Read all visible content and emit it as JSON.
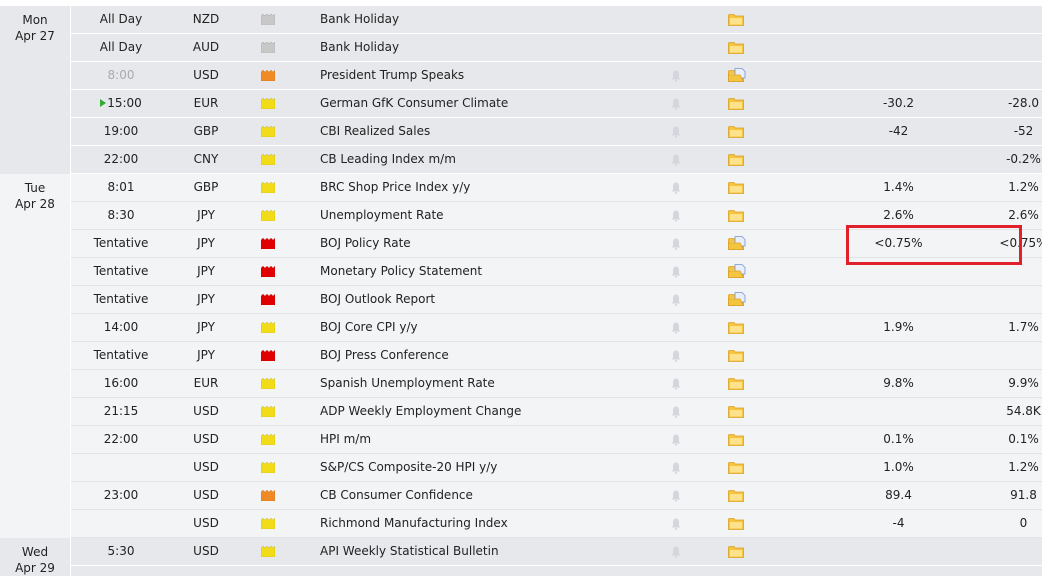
{
  "colors": {
    "holiday": "#c8c8c8",
    "medium": "#f08a24",
    "low": "#f2dc1a",
    "high": "#e00000",
    "highlight": "#e0202a"
  },
  "groups": [
    {
      "day": "Mon",
      "date": "Apr 27",
      "rows": [
        {
          "time": "All Day",
          "currency": "NZD",
          "impact": "holiday",
          "event": "Bank Holiday",
          "bell": false,
          "folder": "folder-icon",
          "forecast": "",
          "previous": ""
        },
        {
          "time": "All Day",
          "currency": "AUD",
          "impact": "holiday",
          "event": "Bank Holiday",
          "bell": false,
          "folder": "folder-icon",
          "forecast": "",
          "previous": ""
        },
        {
          "time": "8:00",
          "time_muted": true,
          "currency": "USD",
          "impact": "medium",
          "event": "President Trump Speaks",
          "bell": true,
          "folder": "folder-document-icon",
          "forecast": "",
          "previous": ""
        },
        {
          "time": "15:00",
          "next": true,
          "currency": "EUR",
          "impact": "low",
          "event": "German GfK Consumer Climate",
          "bell": true,
          "folder": "folder-icon",
          "forecast": "-30.2",
          "previous": "-28.0"
        },
        {
          "time": "19:00",
          "currency": "GBP",
          "impact": "low",
          "event": "CBI Realized Sales",
          "bell": true,
          "folder": "folder-icon",
          "forecast": "-42",
          "previous": "-52"
        },
        {
          "time": "22:00",
          "currency": "CNY",
          "impact": "low",
          "event": "CB Leading Index m/m",
          "bell": true,
          "folder": "folder-icon",
          "forecast": "",
          "previous": "-0.2%"
        }
      ]
    },
    {
      "day": "Tue",
      "date": "Apr 28",
      "rows": [
        {
          "time": "8:01",
          "currency": "GBP",
          "impact": "low",
          "event": "BRC Shop Price Index y/y",
          "bell": true,
          "folder": "folder-icon",
          "forecast": "1.4%",
          "previous": "1.2%"
        },
        {
          "time": "8:30",
          "currency": "JPY",
          "impact": "low",
          "event": "Unemployment Rate",
          "bell": true,
          "folder": "folder-icon",
          "forecast": "2.6%",
          "previous": "2.6%"
        },
        {
          "time": "Tentative",
          "currency": "JPY",
          "impact": "high",
          "event": "BOJ Policy Rate",
          "bell": true,
          "folder": "folder-document-icon",
          "forecast": "<0.75%",
          "previous": "<0.75%",
          "highlighted": true
        },
        {
          "time": "Tentative",
          "currency": "JPY",
          "impact": "high",
          "event": "Monetary Policy Statement",
          "bell": true,
          "folder": "folder-document-icon",
          "forecast": "",
          "previous": ""
        },
        {
          "time": "Tentative",
          "currency": "JPY",
          "impact": "high",
          "event": "BOJ Outlook Report",
          "bell": true,
          "folder": "folder-document-icon",
          "forecast": "",
          "previous": ""
        },
        {
          "time": "14:00",
          "currency": "JPY",
          "impact": "low",
          "event": "BOJ Core CPI y/y",
          "bell": true,
          "folder": "folder-icon",
          "forecast": "1.9%",
          "previous": "1.7%"
        },
        {
          "time": "Tentative",
          "currency": "JPY",
          "impact": "high",
          "event": "BOJ Press Conference",
          "bell": true,
          "folder": "folder-icon",
          "forecast": "",
          "previous": ""
        },
        {
          "time": "16:00",
          "currency": "EUR",
          "impact": "low",
          "event": "Spanish Unemployment Rate",
          "bell": true,
          "folder": "folder-icon",
          "forecast": "9.8%",
          "previous": "9.9%"
        },
        {
          "time": "21:15",
          "currency": "USD",
          "impact": "low",
          "event": "ADP Weekly Employment Change",
          "bell": true,
          "folder": "folder-icon",
          "forecast": "",
          "previous": "54.8K"
        },
        {
          "time": "22:00",
          "currency": "USD",
          "impact": "low",
          "event": "HPI m/m",
          "bell": true,
          "folder": "folder-icon",
          "forecast": "0.1%",
          "previous": "0.1%"
        },
        {
          "time": "",
          "currency": "USD",
          "impact": "low",
          "event": "S&P/CS Composite-20 HPI y/y",
          "bell": true,
          "folder": "folder-icon",
          "forecast": "1.0%",
          "previous": "1.2%"
        },
        {
          "time": "23:00",
          "currency": "USD",
          "impact": "medium",
          "event": "CB Consumer Confidence",
          "bell": true,
          "folder": "folder-icon",
          "forecast": "89.4",
          "previous": "91.8"
        },
        {
          "time": "",
          "currency": "USD",
          "impact": "low",
          "event": "Richmond Manufacturing Index",
          "bell": true,
          "folder": "folder-icon",
          "forecast": "-4",
          "previous": "0"
        }
      ]
    },
    {
      "day": "Wed",
      "date": "Apr 29",
      "rows": [
        {
          "time": "5:30",
          "currency": "USD",
          "impact": "low",
          "event": "API Weekly Statistical Bulletin",
          "bell": true,
          "folder": "folder-icon",
          "forecast": "",
          "previous": ""
        }
      ]
    }
  ]
}
